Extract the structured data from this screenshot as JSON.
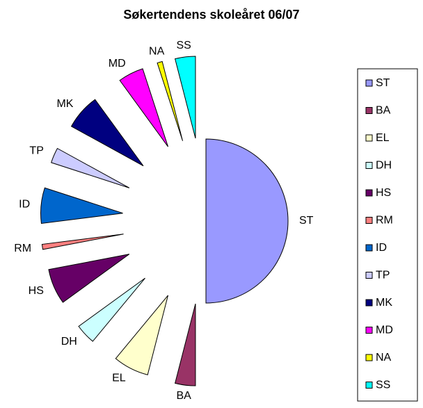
{
  "chart_data": {
    "type": "pie",
    "title": "Søkertendens skoleåret 06/07",
    "categories": [
      "ST",
      "BA",
      "EL",
      "DH",
      "HS",
      "RM",
      "ID",
      "TP",
      "MK",
      "MD",
      "NA",
      "SS"
    ],
    "values": [
      50,
      4,
      7,
      4,
      7,
      1,
      7,
      3,
      7,
      5,
      1,
      4
    ],
    "colors": [
      "#9999ff",
      "#993366",
      "#ffffcc",
      "#ccffff",
      "#660066",
      "#ff8080",
      "#0066cc",
      "#ccccff",
      "#000080",
      "#ff00ff",
      "#ffff00",
      "#00ffff"
    ],
    "legend": "right"
  }
}
